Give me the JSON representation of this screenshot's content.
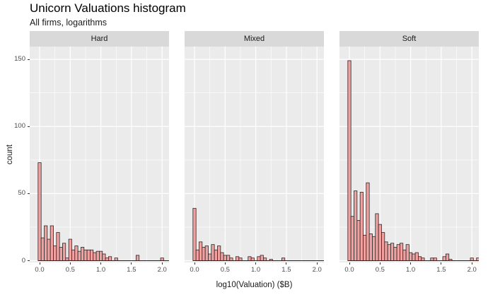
{
  "chart_data": {
    "type": "bar",
    "subtype": "faceted-histogram",
    "title": "Unicorn Valuations histogram",
    "subtitle": "All firms, logarithms",
    "xlabel": "log10(Valuation) ($B)",
    "ylabel": "count",
    "legend": "none",
    "grid": "on",
    "x_ticks": [
      0.0,
      0.5,
      1.0,
      1.5,
      2.0
    ],
    "x_tick_labels": [
      "0.0",
      "0.5",
      "1.0",
      "1.5",
      "2.0"
    ],
    "x_minor_ticks": [
      0.25,
      0.75,
      1.25,
      1.75
    ],
    "y_ticks": [
      0,
      50,
      100,
      150
    ],
    "y_tick_labels": [
      "0",
      "50",
      "100",
      "150"
    ],
    "y_minor_ticks": [
      25,
      75,
      125
    ],
    "xlim": [
      -0.16,
      2.11
    ],
    "ylim": [
      0,
      160
    ],
    "bin_width": 0.05,
    "bin_center_start": 0.0,
    "facets": [
      {
        "label": "Hard",
        "counts": [
          73,
          17,
          26,
          16,
          26,
          11,
          21,
          10,
          13,
          2,
          16,
          8,
          11,
          7,
          10,
          8,
          8,
          8,
          6,
          7,
          7,
          5,
          2,
          3,
          0,
          2,
          0,
          0,
          0,
          0,
          0,
          0,
          4,
          0,
          0,
          0,
          0,
          0,
          0,
          0,
          2,
          0,
          0
        ]
      },
      {
        "label": "Mixed",
        "counts": [
          39,
          8,
          14,
          10,
          11,
          5,
          12,
          8,
          11,
          6,
          4,
          4,
          2,
          0,
          3,
          2,
          0,
          0,
          3,
          2,
          0,
          3,
          4,
          2,
          0,
          1,
          0,
          0,
          0,
          2,
          0,
          0,
          0,
          0,
          0,
          0,
          0,
          0,
          0,
          0,
          0,
          0,
          0
        ]
      },
      {
        "label": "Soft",
        "counts": [
          149,
          33,
          52,
          30,
          51,
          19,
          58,
          20,
          18,
          35,
          27,
          21,
          14,
          12,
          13,
          10,
          12,
          13,
          8,
          12,
          6,
          5,
          6,
          3,
          2,
          0,
          0,
          2,
          2,
          0,
          0,
          3,
          5,
          1,
          0,
          0,
          0,
          0,
          0,
          0,
          2,
          0,
          2
        ]
      }
    ],
    "colors": {
      "bar_fill": "#F2A1A1",
      "bar_stroke": "#262626",
      "panel_bg": "#EBEBEB",
      "strip_bg": "#D9D9D9",
      "gridline": "#FFFFFF",
      "axis_text": "#4D4D4D",
      "tick_mark": "#333333",
      "text": "#000000"
    }
  }
}
